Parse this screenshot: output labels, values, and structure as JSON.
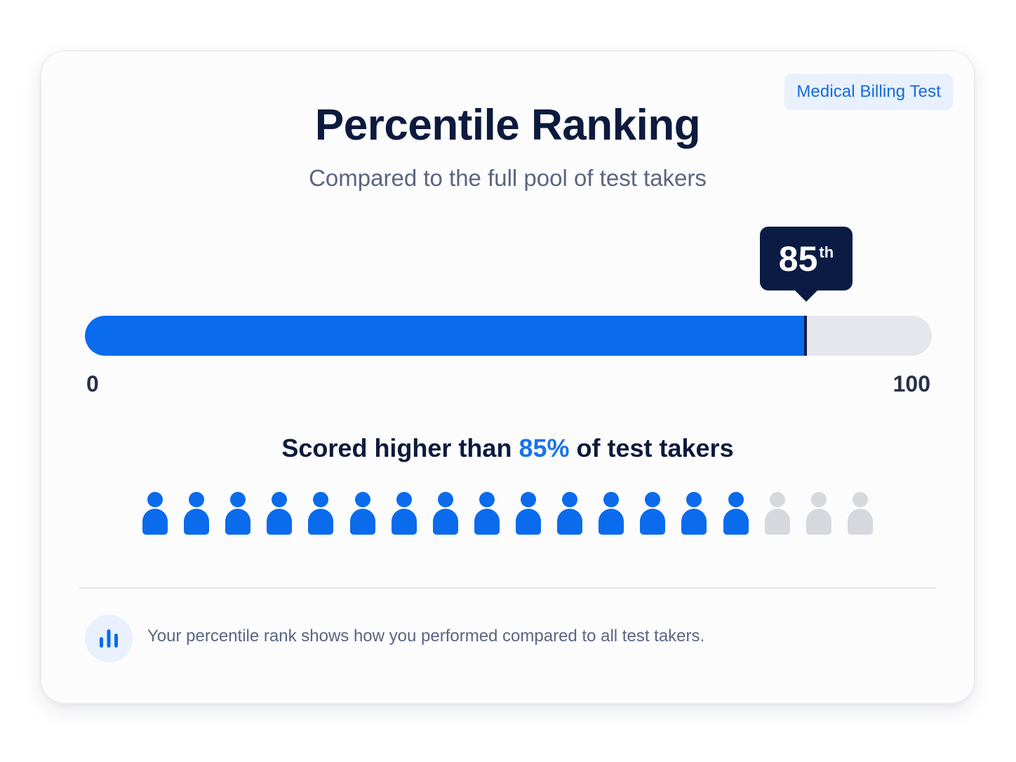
{
  "tag": "Medical Billing Test",
  "title": "Percentile Ranking",
  "subtitle": "Compared to the full pool of test takers",
  "percentile": {
    "value": "85",
    "suffix": "th",
    "fraction": 0.85
  },
  "scale": {
    "min": "0",
    "max": "100"
  },
  "summary": {
    "prefix": "Scored higher than ",
    "highlight": "85%",
    "suffix": " of test takers"
  },
  "people": {
    "total": 18,
    "highlighted": 15
  },
  "info": {
    "icon": "bar-chart-icon",
    "text": "Your percentile rank shows how you performed compared to all test takers."
  },
  "colors": {
    "accent": "#0a6bec",
    "marker": "#0b1b44",
    "track": "#e6e7ec",
    "inactive_person": "#d6d8de"
  }
}
